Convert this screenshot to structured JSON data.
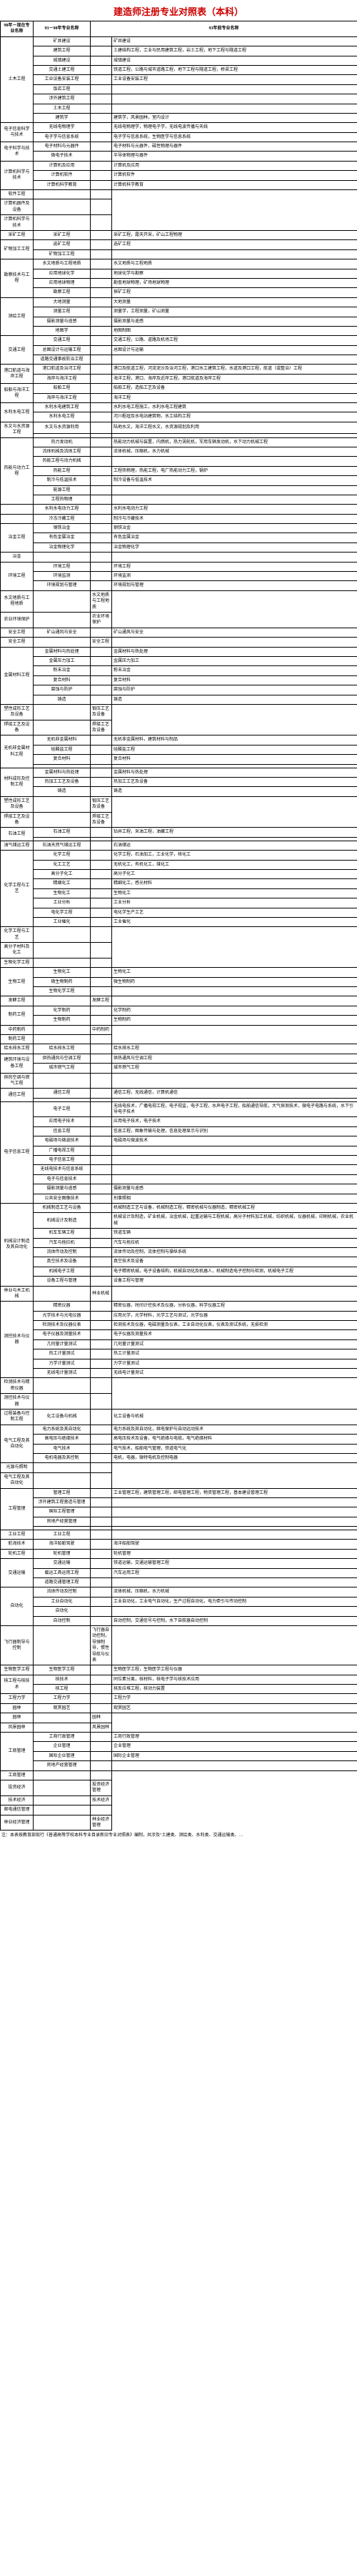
{
  "title": "建造师注册专业对照表（本科）",
  "headers": {
    "col1": "98年－现在专业名称",
    "col2": "93－98年专业名称",
    "col3_merge": "93年前专业名称"
  },
  "footnote": "注：本表按教育部现行《普通高等学校本科专业目录新旧专业对照表》编制，共涉及\"土建类、测绘类、水利类、交通运输类、…",
  "rows": [
    {
      "c1": "土木工程",
      "c1rs": 9,
      "c2": "矿井建设",
      "c4": "矿井建设"
    },
    {
      "c2": "建筑工程",
      "c4": "土建结构工程，工业与民用建筑工程，岩土工程，地下工程与隧道工程"
    },
    {
      "c2": "城镇建设",
      "c4": "城镇建设"
    },
    {
      "c2": "交通土建工程",
      "c4": "铁道工程，公路与城市道路工程，地下工程与隧道工程，桥梁工程"
    },
    {
      "c2": "工业设备安装工程",
      "c4": "工业设备安装工程"
    },
    {
      "c2": "饭店工程",
      "c4": ""
    },
    {
      "c2": "涉外建筑工程",
      "c4": ""
    },
    {
      "c2": "土木工程",
      "c4": ""
    },
    {
      "c2": "建筑学",
      "c4": "建筑学，风景园林，室内设计"
    },
    {
      "c1": "电子信息科学与技术",
      "c1rs": 2,
      "c2": "无线电物理学",
      "c4": "无线电物理学，物理电子学，无线电波传播与天线"
    },
    {
      "c2": "电子学与信息系统",
      "c4": "电子学与信息系统，生物医学与信息系统"
    },
    {
      "c1": "电子科学与技术",
      "c1rs": 2,
      "c2": "电子材料与元器件",
      "c4": "电子材料与元器件，磁性物理与器件"
    },
    {
      "c2": "微电子技术",
      "c4": "半导体物理与器件"
    },
    {
      "c1": "计算机科学与技术",
      "c1rs": 3,
      "c2": "计算机及应用",
      "c4": "计算机及应用"
    },
    {
      "c2": "计算机软件",
      "c4": "计算机软件"
    },
    {
      "c2": "计算机科学教育",
      "c4": "计算机科学教育"
    },
    {
      "c2": "软件工程",
      "c4": ""
    },
    {
      "c2": "计算机器件及设备",
      "c4": ""
    },
    {
      "c2": "计算机科学与技术",
      "c4": ""
    },
    {
      "c1": "采矿工程",
      "c2": "采矿工程",
      "c4": "采矿工程，露天开采，矿山工程物理"
    },
    {
      "c1": "矿物加工工程",
      "c1rs": 2,
      "c2": "选矿工程",
      "c4": "选矿工程"
    },
    {
      "c2": "矿物加工工程",
      "c4": ""
    },
    {
      "c1": "勘察技术与工程",
      "c1rs": 4,
      "c2": "水文地质与工程地质",
      "c4": "水文地质与工程地质"
    },
    {
      "c2": "应用地球化学",
      "c4": "地球化学与勘察"
    },
    {
      "c2": "应用地球物理",
      "c4": "勘查地球物理，矿场地球物理"
    },
    {
      "c2": "勘察工程",
      "c4": "探矿工程"
    },
    {
      "c1": "测绘工程",
      "c1rs": 4,
      "c2": "大地测量",
      "c4": "大地测量"
    },
    {
      "c2": "测量工程",
      "c4": "测量学，工程测量，矿山测量"
    },
    {
      "c2": "摄影测量与遥感",
      "c4": "摄影测量与遥感"
    },
    {
      "c2": "地图学",
      "c4": "地图制图"
    },
    {
      "c1": "交通工程",
      "c1rs": 3,
      "c2": "交通工程",
      "c4": "交通工程，公路、道路及机场工程"
    },
    {
      "c2": "总图设计与运输工程",
      "c4": "总图设计与运输"
    },
    {
      "c2": "道路交通事故防治工程",
      "c4": ""
    },
    {
      "c1": "港口航道与海岸工程",
      "c1rs": 2,
      "c2": "港口航道及治河工程",
      "c4": "港口及航道工程，河流泥沙及治河工程，港口水工建筑工程，水道及港口工程，航道（或整治）工程"
    },
    {
      "c2": "海岸与海洋工程",
      "c4": "海洋工程，港口、海岸及近岸工程，港口航道及海岸工程"
    },
    {
      "c1": "船舶与海洋工程",
      "c1rs": 2,
      "c2": "船舶工程",
      "c4": "船舶工程，造船工艺及设备"
    },
    {
      "c2": "海岸与海洋工程",
      "c4": "海洋工程"
    },
    {
      "c1": "水利水电工程",
      "c1rs": 2,
      "c2": "水利水电建筑工程",
      "c4": "水利水电工程施工，水利水电工程建筑"
    },
    {
      "c2": "水利水电工程",
      "c4": "河川枢纽及水电站建筑物，水工结构工程"
    },
    {
      "c1": "水文与水资源工程",
      "c1rs": 2,
      "c2": "水文与水资源利用",
      "c4": "陆地水文，海洋工程水文，水资源规划及利用"
    },
    {
      "c2": "",
      "c4": ""
    },
    {
      "c1": "热能与动力工程",
      "c1rs": 7,
      "c2": "热力发动机",
      "c4": "热能动力机械与装置，内燃机，热力涡轮机，军用车辆发动机，水下动力机械工程"
    },
    {
      "c2": "流体机械及流体工程",
      "c4": "流体机械，压缩机，水力机械"
    },
    {
      "c2": "热能工程与动力机械",
      "c4": ""
    },
    {
      "c2": "热能工程",
      "c4": "工程热物理，热能工程，电厂热能动力工程，锅炉"
    },
    {
      "c2": "制冷与低温技术",
      "c4": "制冷设备与低温技术"
    },
    {
      "c2": "能源工程",
      "c4": ""
    },
    {
      "c2": "工程热物理",
      "c4": ""
    },
    {
      "c1": "",
      "c2": "水利水电动力工程",
      "c4": "水利水电动力工程"
    },
    {
      "c1": "",
      "c2": "冷冻冷藏工程",
      "c4": "制冷与冷藏技术"
    },
    {
      "c1": "冶金工程",
      "c1rs": 3,
      "c2": "钢铁冶金",
      "c4": "钢铁冶金"
    },
    {
      "c2": "有色金属冶金",
      "c4": "有色金属冶金"
    },
    {
      "c2": "冶金物理化学",
      "c4": "冶金物理化学"
    },
    {
      "c2": "冶金",
      "c4": ""
    },
    {
      "c1": "环境工程",
      "c1rs": 3,
      "c2": "环境工程",
      "c4": "环境工程"
    },
    {
      "c2": "环境监测",
      "c4": "环境监测"
    },
    {
      "c2": "环境规划与管理",
      "c4": "环境规划与管理"
    },
    {
      "c2": "水文地质与工程地质",
      "c4": "水文地质与工程地质"
    },
    {
      "c2": "农业环境保护",
      "c4": "农业环境保护"
    },
    {
      "c1": "安全工程",
      "c2": "矿山通风与安全",
      "c4": "矿山通风与安全"
    },
    {
      "c2": "安全工程",
      "c4": "安全工程"
    },
    {
      "c1": "金属材料工程",
      "c1rs": 6,
      "c2": "金属材料与热处理",
      "c4": "金属材料与热处理"
    },
    {
      "c2": "金属压力加工",
      "c4": "金属压力加工"
    },
    {
      "c2": "粉末冶金",
      "c4": "粉末冶金"
    },
    {
      "c2": "复合材料",
      "c4": "复合材料"
    },
    {
      "c2": "腐蚀与防护",
      "c4": "腐蚀与防护"
    },
    {
      "c2": "铸造",
      "c4": "铸造"
    },
    {
      "c2": "塑性成形工艺及设备",
      "c4": "锻压工艺及设备"
    },
    {
      "c2": "焊接工艺及设备",
      "c4": "焊接工艺及设备"
    },
    {
      "c1": "无机非金属材料工程",
      "c1rs": 4,
      "c2": "无机非金属材料",
      "c4": "无机非金属材料，建筑材料与制品"
    },
    {
      "c2": "硅酸盐工程",
      "c4": "硅酸盐工程"
    },
    {
      "c2": "复合材料",
      "c4": "复合材料"
    },
    {
      "c2": "",
      "c4": ""
    },
    {
      "c1": "材料成形及控制工程",
      "c1rs": 3,
      "c2": "金属材料与热处理",
      "c4": "金属材料与热处理"
    },
    {
      "c2": "热加工工艺及设备",
      "c4": "热加工工艺及设备"
    },
    {
      "c2": "铸造",
      "c4": "铸造"
    },
    {
      "c2": "塑性成形工艺及设备",
      "c4": "锻压工艺及设备"
    },
    {
      "c2": "焊接工艺及设备",
      "c4": "焊接工艺及设备"
    },
    {
      "c1": "石油工程",
      "c1rs": 2,
      "c2": "石油工程",
      "c4": "钻井工程，采油工程，油藏工程"
    },
    {
      "c2": "",
      "c4": ""
    },
    {
      "c1": "油气储运工程",
      "c2": "石油天然气储运工程",
      "c4": "石油储运"
    },
    {
      "c1": "化学工程与工艺",
      "c1rs": 8,
      "c2": "化学工程",
      "c4": "化学工程，石油加工，工业化学，核化工"
    },
    {
      "c2": "化工工艺",
      "c4": "无机化工，有机化工，煤化工"
    },
    {
      "c2": "高分子化工",
      "c4": "高分子化工"
    },
    {
      "c2": "精细化工",
      "c4": "精细化工，感光材料"
    },
    {
      "c2": "生物化工",
      "c4": "生物化工"
    },
    {
      "c2": "工业分析",
      "c4": "工业分析"
    },
    {
      "c2": "电化学工程",
      "c4": "电化学生产工艺"
    },
    {
      "c2": "工业催化",
      "c4": "工业催化"
    },
    {
      "c2": "化学工程与工艺",
      "c4": ""
    },
    {
      "c2": "高分子材料及化工",
      "c4": ""
    },
    {
      "c2": "生物化学工程",
      "c4": ""
    },
    {
      "c1": "生物工程",
      "c1rs": 3,
      "c2": "生物化工",
      "c4": "生物化工"
    },
    {
      "c2": "微生物制药",
      "c4": "微生物制药"
    },
    {
      "c2": "生物化学工程",
      "c4": ""
    },
    {
      "c2": "发酵工程",
      "c4": "发酵工程"
    },
    {
      "c1": "制药工程",
      "c1rs": 2,
      "c2": "化学制药",
      "c4": "化学制药"
    },
    {
      "c2": "生物制药",
      "c4": "生物制药"
    },
    {
      "c2": "中药制药",
      "c4": "中药制药"
    },
    {
      "c2": "制药工程",
      "c4": ""
    },
    {
      "c1": "给水排水工程",
      "c2": "给水排水工程",
      "c4": "给水排水工程"
    },
    {
      "c1": "建筑环境与设备工程",
      "c1rs": 2,
      "c2": "供热通风与空调工程",
      "c4": "供热通风与空调工程"
    },
    {
      "c2": "城市燃气工程",
      "c4": "城市燃气工程"
    },
    {
      "c2": "供热空调与燃气工程",
      "c4": ""
    },
    {
      "c1": "通信工程",
      "c1rs": 2,
      "c2": "通信工程",
      "c4": "通信工程，无线通信，计算机通信"
    },
    {
      "c2": "",
      "c4": ""
    },
    {
      "c1": "电子信息工程",
      "c1rs": 10,
      "c2": "电子工程",
      "c4": "无线电技术，广播电视工程，电子视监，电子工程，水声电子工程，船舶通信导航，大气探测技术，微电子电路与系统，水下引导电子技术"
    },
    {
      "c2": "应用电子技术",
      "c4": "应用电子技术，电子技术"
    },
    {
      "c2": "信息工程",
      "c4": "信息工程，图象传输与处理，信息处理显示与识别"
    },
    {
      "c2": "电磁场与微波技术",
      "c4": "电磁场与微波技术"
    },
    {
      "c2": "广播电视工程",
      "c4": ""
    },
    {
      "c2": "电子信息工程",
      "c4": ""
    },
    {
      "c2": "无线电技术与信息系统",
      "c4": ""
    },
    {
      "c2": "电子与信息技术",
      "c4": ""
    },
    {
      "c2": "摄影测量与遥感",
      "c4": "摄影测量与遥感"
    },
    {
      "c2": "公共安全图像技术",
      "c4": "刑事照相"
    },
    {
      "c1": "机械设计制造及其自动化",
      "c1rs": 8,
      "c2": "机械制造工艺与设备",
      "c4": "机械制造工艺与设备，机械制造工程，精密机械与仪器制造，精密机械工程"
    },
    {
      "c2": "机械设计及制造",
      "c4": "机械设计及制造，矿业机械，冶金机械，起重运输与工程机械，高分子材料加工机械，纺织机械，仪器机械，印刷机械，农业机械"
    },
    {
      "c2": "机车车辆工程",
      "c4": "铁道车辆"
    },
    {
      "c2": "汽车与拖拉机",
      "c4": "汽车与拖拉机"
    },
    {
      "c2": "流体传动及控制",
      "c4": "流体传动及控制，流体控制与操纵系统"
    },
    {
      "c2": "真空技术及设备",
      "c4": "真空技术及设备"
    },
    {
      "c2": "机械电子工程",
      "c4": "电子精密机械，电子设备结构，机械自动化及机器人，机械制造电子控制与检测，机械电子工程"
    },
    {
      "c2": "设备工程与管理",
      "c4": "设备工程与管理"
    },
    {
      "c2": "林业与木工机械",
      "c4": "林业机械"
    },
    {
      "c1": "测控技术与仪器",
      "c1rs": 8,
      "c2": "精密仪器",
      "c4": "精密仪器，时间计控技术及仪器，分析仪器，科学仪器工程"
    },
    {
      "c2": "光学技术与光电仪器",
      "c4": "应用光学，光学材料，光学工艺与测试，光学仪器"
    },
    {
      "c2": "检测技术及仪器仪表",
      "c4": "检测技术及仪器，电磁测量及仪表，工业自动化仪表，仪表及测试系统，无损检测"
    },
    {
      "c2": "电子仪器及测量技术",
      "c4": "电子仪器及测量技术"
    },
    {
      "c2": "几何量计量测试",
      "c4": "几何量计量测试"
    },
    {
      "c2": "热工计量测试",
      "c4": "热工计量测试"
    },
    {
      "c2": "力学计量测试",
      "c4": "力学计量测试"
    },
    {
      "c2": "无线电计量测试",
      "c4": "无线电计量测试"
    },
    {
      "c2": "检测技术与精密仪器",
      "c4": ""
    },
    {
      "c2": "测控技术与仪器",
      "c4": ""
    },
    {
      "c1": "过程装备与控制工程",
      "c2": "化工设备与机械",
      "c4": "化工设备与机械"
    },
    {
      "c1": "电气工程及其自动化",
      "c1rs": 4,
      "c2": "电力系统及其自动化",
      "c4": "电力系统及其自动化，继电保护与自动远动技术"
    },
    {
      "c2": "高电压与绝缘技术",
      "c4": "高电压技术及设备，电气绝缘与电缆，电气绝缘材料"
    },
    {
      "c2": "电气技术",
      "c4": "电气技术，船舶电气管理，铁道电气化"
    },
    {
      "c2": "电机电器及其控制",
      "c4": "电机，电器，微特电机及控制电器"
    },
    {
      "c2": "光源与照明",
      "c4": ""
    },
    {
      "c2": "电气工程及其自动化",
      "c4": ""
    },
    {
      "c1": "工程管理",
      "c1rs": 5,
      "c2": "管理工程",
      "c4": "工业管理工程，建筑管理工程，邮电管理工程，物资管理工程，基本建设管理工程"
    },
    {
      "c2": "涉外建筑工程营造与管理",
      "c4": ""
    },
    {
      "c2": "国际工程管理",
      "c4": ""
    },
    {
      "c2": "房地产经营管理",
      "c4": ""
    },
    {
      "c2": "",
      "c4": ""
    },
    {
      "c1": "工业工程",
      "c2": "工业工程",
      "c4": ""
    },
    {
      "c1": "航海技术",
      "c2": "海洋船舶驾驶",
      "c4": "海洋船舶驾驶"
    },
    {
      "c1": "轮机工程",
      "c2": "轮机管理",
      "c4": "轮机管理"
    },
    {
      "c1": "交通运输",
      "c1rs": 3,
      "c2": "交通运输",
      "c4": "铁道运输，交通运输管理工程"
    },
    {
      "c2": "载运工具运用工程",
      "c4": "汽车运用工程"
    },
    {
      "c2": "道路交通管理工程",
      "c4": ""
    },
    {
      "c1": "自动化",
      "c1rs": 4,
      "c2": "流体传动及控制",
      "c4": "流体机械，压缩机，水力机械"
    },
    {
      "c2": "工业自动化",
      "c4": "工业自动化，工业电气自动化，生产过程自动化，电力牵引与传动控制"
    },
    {
      "c2": "自动化",
      "c4": ""
    },
    {
      "c2": "自动控制",
      "c4": "自动控制，交通信号与控制，水下自航器自动控制"
    },
    {
      "c2": "飞行器制导与控制",
      "c4": "飞行器自动控制，导弹制导，惯性导航与仪表"
    },
    {
      "c1": "生物医学工程",
      "c2": "生物医学工程",
      "c4": "生物医学工程，生物医学工程与仪器"
    },
    {
      "c1": "核工程与核技术",
      "c1rs": 2,
      "c2": "核技术",
      "c4": "同位素分离，核材料，核电子学与核技术应用"
    },
    {
      "c2": "核工程",
      "c4": "核反应堆工程，核动力装置"
    },
    {
      "c1": "工程力学",
      "c2": "工程力学",
      "c4": "工程力学"
    },
    {
      "c1": "园林",
      "c2": "观赏园艺",
      "c4": "观赏园艺"
    },
    {
      "c2": "园林",
      "c4": "园林"
    },
    {
      "c2": "风景园林",
      "c4": "风景园林"
    },
    {
      "c1": "工商管理",
      "c1rs": 4,
      "c2": "工商行政管理",
      "c4": "工商行政管理"
    },
    {
      "c2": "企业管理",
      "c4": "企业管理"
    },
    {
      "c2": "国际企业管理",
      "c4": "国际企业管理"
    },
    {
      "c2": "房地产经营管理",
      "c4": ""
    },
    {
      "c2": "工商管理",
      "c4": ""
    },
    {
      "c2": "投资经济",
      "c4": "投资经济管理"
    },
    {
      "c2": "技术经济",
      "c4": "技术经济"
    },
    {
      "c2": "邮电通信管理",
      "c4": ""
    },
    {
      "c2": "林业经济管理",
      "c4": "林业经济管理"
    }
  ]
}
